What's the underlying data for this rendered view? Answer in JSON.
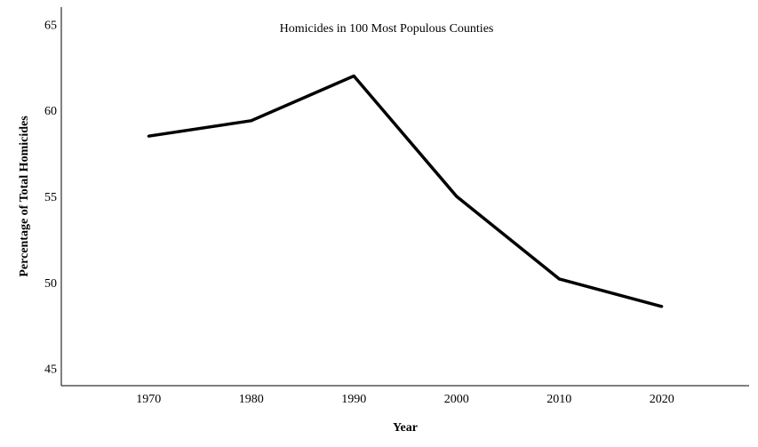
{
  "chart_data": {
    "type": "line",
    "title": "Homicides in 100 Most Populous Counties",
    "xlabel": "Year",
    "ylabel": "Percentage of Total Homicides",
    "x": [
      1970,
      1980,
      1990,
      2000,
      2010,
      2020
    ],
    "series": [
      {
        "values": [
          58.5,
          59.4,
          62.0,
          55.0,
          50.2,
          48.6
        ]
      }
    ],
    "xlim": [
      1961.5,
      2028.5
    ],
    "ylim": [
      44,
      66
    ],
    "xticks": [
      "1970",
      "1980",
      "1990",
      "2000",
      "2010",
      "2020"
    ],
    "yticks": [
      "45",
      "50",
      "55",
      "60",
      "65"
    ],
    "grid": false,
    "line_color": "#000000"
  }
}
